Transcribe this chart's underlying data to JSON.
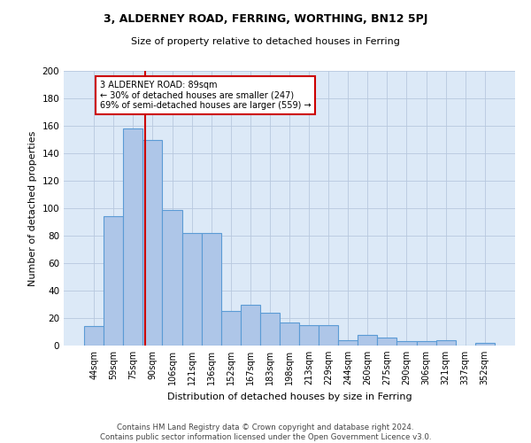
{
  "title1": "3, ALDERNEY ROAD, FERRING, WORTHING, BN12 5PJ",
  "title2": "Size of property relative to detached houses in Ferring",
  "xlabel": "Distribution of detached houses by size in Ferring",
  "ylabel": "Number of detached properties",
  "categories": [
    "44sqm",
    "59sqm",
    "75sqm",
    "90sqm",
    "106sqm",
    "121sqm",
    "136sqm",
    "152sqm",
    "167sqm",
    "183sqm",
    "198sqm",
    "213sqm",
    "229sqm",
    "244sqm",
    "260sqm",
    "275sqm",
    "290sqm",
    "306sqm",
    "321sqm",
    "337sqm",
    "352sqm"
  ],
  "values": [
    14,
    94,
    158,
    150,
    99,
    82,
    82,
    25,
    30,
    24,
    17,
    15,
    15,
    4,
    8,
    6,
    3,
    3,
    4,
    0,
    2
  ],
  "bar_color": "#aec6e8",
  "bar_edge_color": "#5b9bd5",
  "vline_x": 2.6,
  "vline_color": "#cc0000",
  "annotation_text": "3 ALDERNEY ROAD: 89sqm\n← 30% of detached houses are smaller (247)\n69% of semi-detached houses are larger (559) →",
  "annotation_box_color": "#ffffff",
  "annotation_box_edge": "#cc0000",
  "ylim": [
    0,
    200
  ],
  "yticks": [
    0,
    20,
    40,
    60,
    80,
    100,
    120,
    140,
    160,
    180,
    200
  ],
  "bg_color": "#dce9f7",
  "footer": "Contains HM Land Registry data © Crown copyright and database right 2024.\nContains public sector information licensed under the Open Government Licence v3.0."
}
